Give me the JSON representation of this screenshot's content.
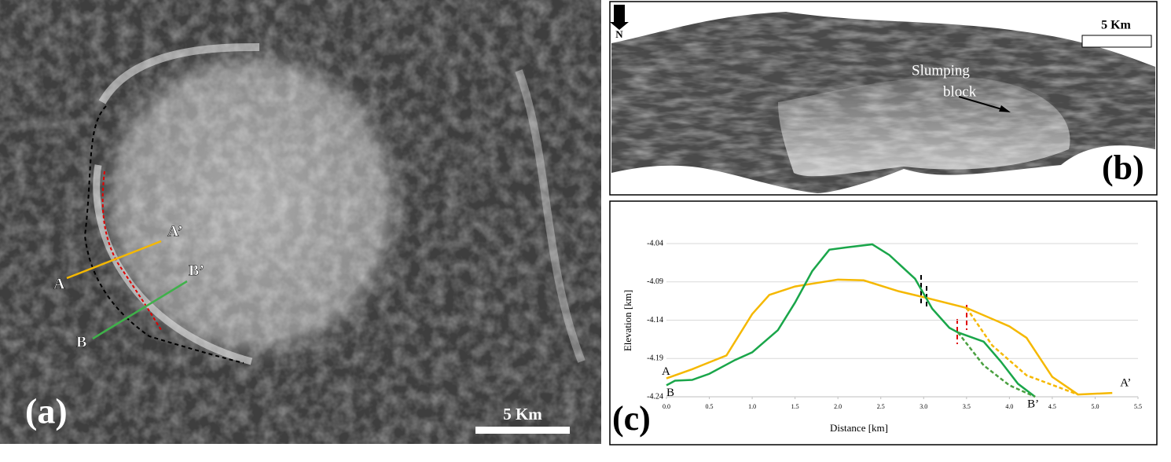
{
  "panel_a": {
    "label": "(a)",
    "scale_bar": "5 Km",
    "profile_labels": [
      "A",
      "A’",
      "B",
      "B’"
    ]
  },
  "panel_b": {
    "label": "(b)",
    "north": "N",
    "scale_bar": "5 Km",
    "annotation": [
      "Slumping",
      "block"
    ]
  },
  "chart_data": {
    "type": "line",
    "panel_label": "(c)",
    "x_label": "Distance [km]",
    "y_label": "Elevation [km]",
    "xlim": [
      0,
      5.5
    ],
    "ylim": [
      -4.24,
      -4.04
    ],
    "xticks": [
      {
        "value": 0,
        "label": "0.0"
      },
      0.5,
      {
        "value": 1,
        "label": "1.0"
      },
      1.5,
      {
        "value": 2,
        "label": "2.0"
      },
      2.5,
      {
        "value": 3,
        "label": "3.0"
      },
      3.5,
      {
        "value": 4,
        "label": "4.0"
      },
      4.5,
      {
        "value": 5,
        "label": "5.0"
      },
      5.5
    ],
    "yticks": [
      -4.04,
      -4.09,
      -4.14,
      -4.19,
      -4.24
    ],
    "grid": true,
    "series": [
      {
        "color": "#f5b800",
        "style": "solid",
        "start_label": "A",
        "end_label": "A’",
        "x": [
          0,
          0.3,
          0.7,
          1.0,
          1.2,
          1.5,
          2.0,
          2.3,
          2.7,
          3.0,
          3.5,
          4.0,
          4.2,
          4.5,
          4.8,
          5.2
        ],
        "values": [
          -4.216,
          -4.204,
          -4.186,
          -4.132,
          -4.107,
          -4.096,
          -4.087,
          -4.088,
          -4.102,
          -4.11,
          -4.124,
          -4.148,
          -4.163,
          -4.214,
          -4.237,
          -4.235
        ]
      },
      {
        "color": "#1aa64a",
        "style": "solid",
        "start_label": "B",
        "end_label": "B’",
        "x": [
          0,
          0.1,
          0.3,
          0.5,
          0.8,
          1.0,
          1.3,
          1.5,
          1.7,
          1.9,
          2.1,
          2.4,
          2.6,
          2.9,
          3.1,
          3.3,
          3.4,
          3.7,
          3.9,
          4.1,
          4.3
        ],
        "values": [
          -4.225,
          -4.219,
          -4.218,
          -4.21,
          -4.192,
          -4.182,
          -4.153,
          -4.117,
          -4.076,
          -4.048,
          -4.045,
          -4.041,
          -4.055,
          -4.086,
          -4.125,
          -4.15,
          -4.156,
          -4.168,
          -4.194,
          -4.223,
          -4.24
        ]
      },
      {
        "color": "#f5b800",
        "style": "dashed",
        "x": [
          3.5,
          3.8,
          4.2,
          4.8
        ],
        "values": [
          -4.124,
          -4.173,
          -4.212,
          -4.237
        ]
      },
      {
        "color": "#4aa040",
        "style": "dashed",
        "x": [
          3.4,
          3.7,
          4.0,
          4.3
        ],
        "values": [
          -4.156,
          -4.199,
          -4.225,
          -4.24
        ]
      }
    ]
  }
}
